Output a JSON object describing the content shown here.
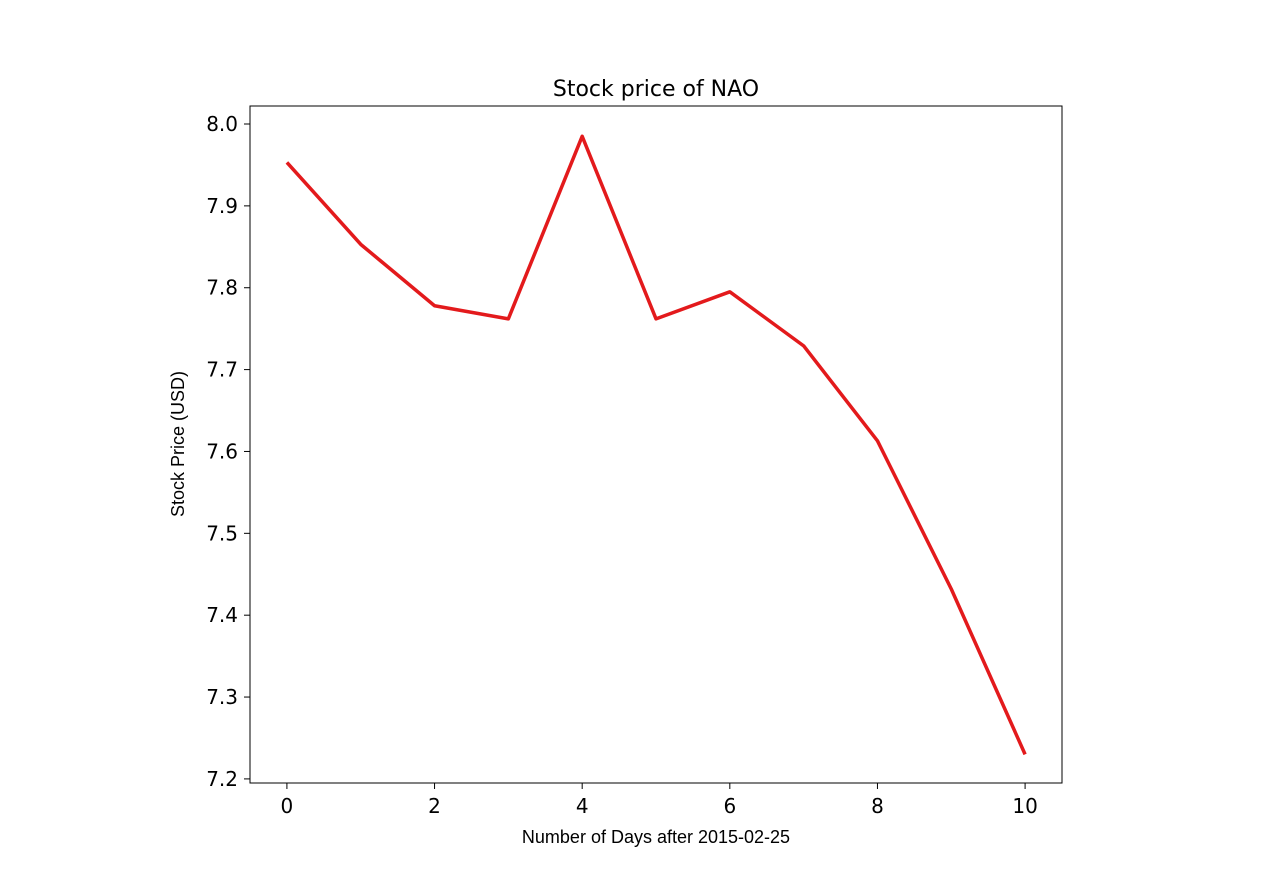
{
  "chart_data": {
    "type": "line",
    "title": "Stock price of NAO",
    "xlabel": "Number of Days after 2015-02-25",
    "ylabel": "Stock Price (USD)",
    "x": [
      0,
      1,
      2,
      3,
      4,
      5,
      6,
      7,
      8,
      9,
      10
    ],
    "series": [
      {
        "values": [
          7.953,
          7.853,
          7.778,
          7.762,
          7.985,
          7.762,
          7.795,
          7.729,
          7.613,
          7.432,
          7.23
        ],
        "color": "#e31a1c"
      }
    ],
    "xlim": [
      -0.5,
      10.5
    ],
    "ylim": [
      7.195,
      8.022
    ],
    "xticks": [
      "0",
      "2",
      "4",
      "6",
      "8",
      "10"
    ],
    "yticks": [
      "7.2",
      "7.3",
      "7.4",
      "7.5",
      "7.6",
      "7.7",
      "7.8",
      "7.9",
      "8.0"
    ],
    "grid": false,
    "legend": "none"
  }
}
